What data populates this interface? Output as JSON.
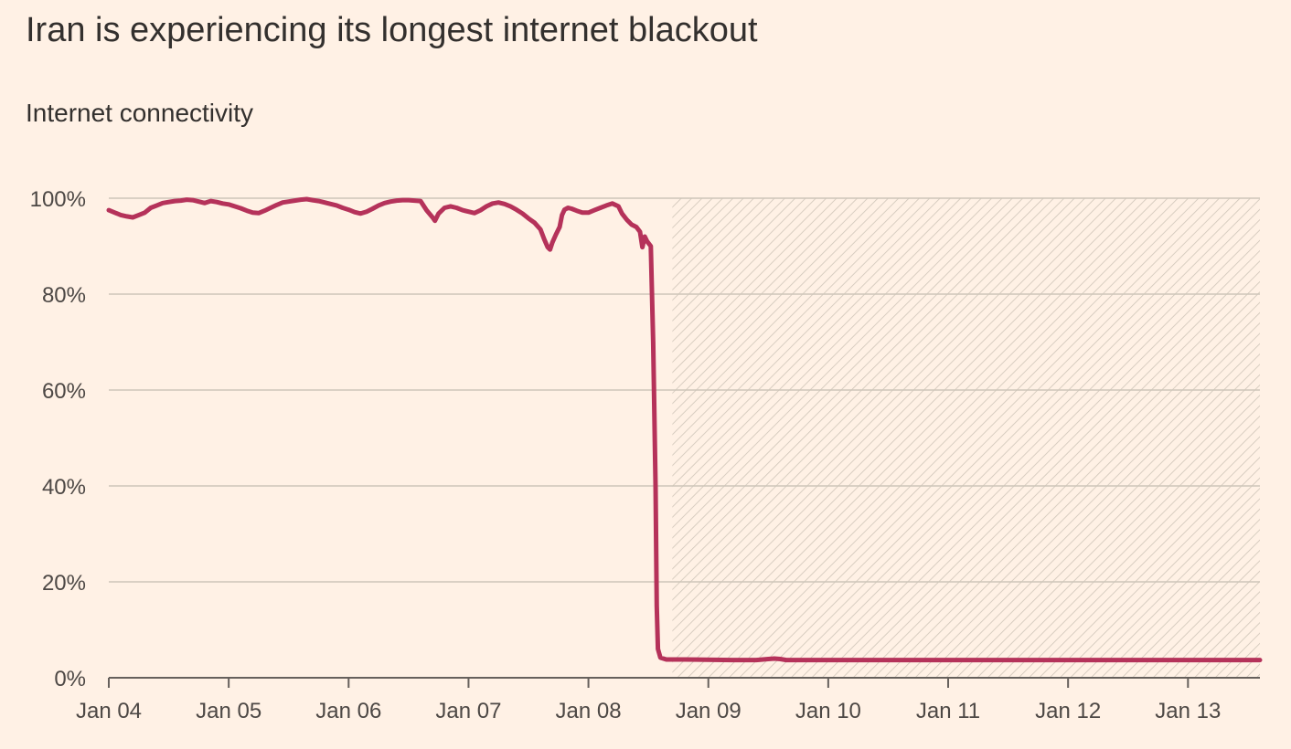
{
  "title": "Iran is experiencing its longest internet blackout",
  "subtitle": "Internet connectivity",
  "colors": {
    "background": "#FFF1E5",
    "line": "#B5325A",
    "grid": "#CEC6B9",
    "axis": "#66605C",
    "hatch": "#CFC5B8"
  },
  "chart_data": {
    "type": "line",
    "title": "Iran is experiencing its longest internet blackout",
    "subtitle": "Internet connectivity",
    "xlabel": "",
    "ylabel": "",
    "x_unit": "days from Jan 04",
    "xlim": [
      0,
      9.6
    ],
    "ylim": [
      0,
      100
    ],
    "y_ticks": [
      0,
      20,
      40,
      60,
      80,
      100
    ],
    "y_tick_labels": [
      "0%",
      "20%",
      "40%",
      "60%",
      "80%",
      "100%"
    ],
    "x_ticks": [
      0,
      1,
      2,
      3,
      4,
      5,
      6,
      7,
      8,
      9
    ],
    "x_tick_labels": [
      "Jan 04",
      "Jan 05",
      "Jan 06",
      "Jan 07",
      "Jan 08",
      "Jan 09",
      "Jan 10",
      "Jan 11",
      "Jan 12",
      "Jan 13"
    ],
    "grid": true,
    "shaded_region": {
      "x_start": 4.7,
      "x_end": 9.6,
      "y_start": 0,
      "y_end": 100,
      "pattern": "diagonal-hatch"
    },
    "series": [
      {
        "values": [
          [
            0.0,
            97.5
          ],
          [
            0.05,
            97.0
          ],
          [
            0.1,
            96.5
          ],
          [
            0.15,
            96.2
          ],
          [
            0.2,
            96.0
          ],
          [
            0.25,
            96.5
          ],
          [
            0.3,
            97.0
          ],
          [
            0.35,
            98.0
          ],
          [
            0.4,
            98.5
          ],
          [
            0.45,
            99.0
          ],
          [
            0.5,
            99.2
          ],
          [
            0.55,
            99.4
          ],
          [
            0.6,
            99.5
          ],
          [
            0.65,
            99.7
          ],
          [
            0.7,
            99.6
          ],
          [
            0.75,
            99.3
          ],
          [
            0.8,
            99.0
          ],
          [
            0.85,
            99.4
          ],
          [
            0.9,
            99.2
          ],
          [
            0.95,
            98.9
          ],
          [
            1.0,
            98.7
          ],
          [
            1.05,
            98.3
          ],
          [
            1.1,
            97.9
          ],
          [
            1.15,
            97.4
          ],
          [
            1.2,
            97.0
          ],
          [
            1.25,
            96.9
          ],
          [
            1.3,
            97.4
          ],
          [
            1.35,
            98.0
          ],
          [
            1.4,
            98.6
          ],
          [
            1.45,
            99.1
          ],
          [
            1.5,
            99.3
          ],
          [
            1.55,
            99.5
          ],
          [
            1.6,
            99.7
          ],
          [
            1.65,
            99.8
          ],
          [
            1.7,
            99.6
          ],
          [
            1.75,
            99.4
          ],
          [
            1.8,
            99.1
          ],
          [
            1.85,
            98.8
          ],
          [
            1.9,
            98.5
          ],
          [
            1.95,
            98.0
          ],
          [
            2.0,
            97.6
          ],
          [
            2.05,
            97.1
          ],
          [
            2.1,
            96.8
          ],
          [
            2.15,
            97.2
          ],
          [
            2.2,
            97.8
          ],
          [
            2.25,
            98.5
          ],
          [
            2.3,
            99.0
          ],
          [
            2.35,
            99.3
          ],
          [
            2.4,
            99.5
          ],
          [
            2.45,
            99.6
          ],
          [
            2.5,
            99.6
          ],
          [
            2.55,
            99.5
          ],
          [
            2.6,
            99.4
          ],
          [
            2.65,
            97.5
          ],
          [
            2.7,
            96.0
          ],
          [
            2.72,
            95.3
          ],
          [
            2.75,
            96.8
          ],
          [
            2.8,
            98.0
          ],
          [
            2.85,
            98.3
          ],
          [
            2.9,
            98.0
          ],
          [
            2.95,
            97.5
          ],
          [
            3.0,
            97.2
          ],
          [
            3.05,
            96.9
          ],
          [
            3.1,
            97.5
          ],
          [
            3.15,
            98.3
          ],
          [
            3.2,
            98.9
          ],
          [
            3.25,
            99.1
          ],
          [
            3.3,
            98.8
          ],
          [
            3.35,
            98.3
          ],
          [
            3.4,
            97.6
          ],
          [
            3.45,
            96.8
          ],
          [
            3.5,
            95.8
          ],
          [
            3.55,
            94.9
          ],
          [
            3.6,
            93.5
          ],
          [
            3.63,
            91.5
          ],
          [
            3.66,
            89.8
          ],
          [
            3.68,
            89.3
          ],
          [
            3.7,
            90.8
          ],
          [
            3.73,
            92.5
          ],
          [
            3.76,
            94.0
          ],
          [
            3.78,
            96.5
          ],
          [
            3.8,
            97.6
          ],
          [
            3.83,
            98.0
          ],
          [
            3.86,
            97.8
          ],
          [
            3.9,
            97.4
          ],
          [
            3.95,
            97.0
          ],
          [
            4.0,
            97.0
          ],
          [
            4.05,
            97.5
          ],
          [
            4.1,
            98.0
          ],
          [
            4.15,
            98.5
          ],
          [
            4.2,
            98.9
          ],
          [
            4.25,
            98.3
          ],
          [
            4.28,
            96.8
          ],
          [
            4.32,
            95.5
          ],
          [
            4.36,
            94.5
          ],
          [
            4.4,
            94.0
          ],
          [
            4.43,
            93.0
          ],
          [
            4.45,
            89.8
          ],
          [
            4.47,
            92.0
          ],
          [
            4.49,
            91.0
          ],
          [
            4.52,
            90.0
          ],
          [
            4.54,
            70.0
          ],
          [
            4.56,
            40.0
          ],
          [
            4.57,
            15.0
          ],
          [
            4.58,
            6.0
          ],
          [
            4.6,
            4.2
          ],
          [
            4.65,
            3.8
          ],
          [
            4.8,
            3.8
          ],
          [
            5.2,
            3.7
          ],
          [
            5.4,
            3.7
          ],
          [
            5.5,
            3.9
          ],
          [
            5.55,
            4.0
          ],
          [
            5.6,
            3.9
          ],
          [
            5.65,
            3.7
          ],
          [
            6.0,
            3.7
          ],
          [
            7.0,
            3.7
          ],
          [
            8.0,
            3.7
          ],
          [
            9.0,
            3.7
          ],
          [
            9.6,
            3.7
          ]
        ]
      }
    ]
  }
}
